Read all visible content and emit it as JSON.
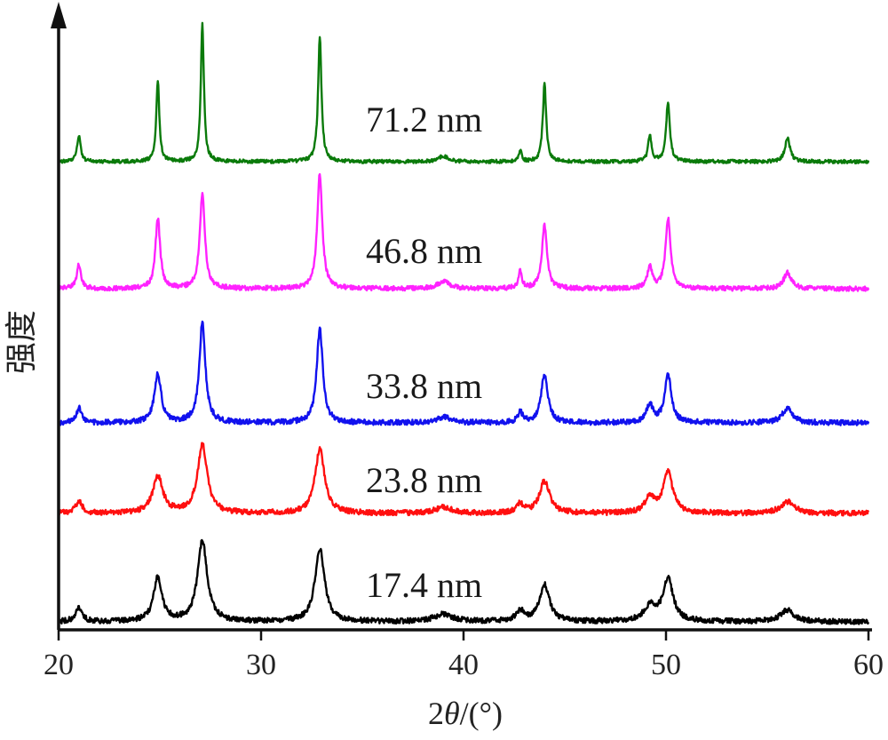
{
  "chart_data": {
    "type": "line",
    "title": "",
    "xlabel": "2θ/(°)",
    "xlabel_parts": {
      "prefix": "2",
      "symbol": "θ",
      "suffix": "/(°)"
    },
    "ylabel": "强度",
    "xlim": [
      20,
      60
    ],
    "x_ticks": [
      "20",
      "30",
      "40",
      "50",
      "60"
    ],
    "grid": false,
    "legend": "none",
    "y_axis_arrow": true,
    "peaks_2theta": [
      21.0,
      24.9,
      27.1,
      32.9,
      39.0,
      42.8,
      44.0,
      49.2,
      50.1,
      56.0
    ],
    "series": [
      {
        "name": "71.2 nm",
        "color": "#0a7a0a",
        "noise": 0.012,
        "peaks": [
          {
            "x": 21.0,
            "h": 0.18,
            "w": 0.1
          },
          {
            "x": 24.9,
            "h": 0.55,
            "w": 0.09
          },
          {
            "x": 27.1,
            "h": 0.95,
            "w": 0.09
          },
          {
            "x": 32.9,
            "h": 0.85,
            "w": 0.1
          },
          {
            "x": 39.0,
            "h": 0.04,
            "w": 0.25
          },
          {
            "x": 42.8,
            "h": 0.08,
            "w": 0.08
          },
          {
            "x": 44.0,
            "h": 0.53,
            "w": 0.1
          },
          {
            "x": 49.2,
            "h": 0.18,
            "w": 0.1
          },
          {
            "x": 50.1,
            "h": 0.41,
            "w": 0.11
          },
          {
            "x": 56.0,
            "h": 0.16,
            "w": 0.15
          }
        ]
      },
      {
        "name": "46.8 nm",
        "color": "#ff22ff",
        "noise": 0.016,
        "peaks": [
          {
            "x": 21.0,
            "h": 0.17,
            "w": 0.12
          },
          {
            "x": 24.9,
            "h": 0.48,
            "w": 0.14
          },
          {
            "x": 27.1,
            "h": 0.65,
            "w": 0.15
          },
          {
            "x": 32.9,
            "h": 0.78,
            "w": 0.15
          },
          {
            "x": 39.0,
            "h": 0.05,
            "w": 0.35
          },
          {
            "x": 42.8,
            "h": 0.12,
            "w": 0.1
          },
          {
            "x": 44.0,
            "h": 0.43,
            "w": 0.15
          },
          {
            "x": 49.2,
            "h": 0.15,
            "w": 0.15
          },
          {
            "x": 50.1,
            "h": 0.48,
            "w": 0.15
          },
          {
            "x": 56.0,
            "h": 0.11,
            "w": 0.22
          }
        ]
      },
      {
        "name": "33.8 nm",
        "color": "#1111ee",
        "noise": 0.018,
        "peaks": [
          {
            "x": 21.0,
            "h": 0.1,
            "w": 0.15
          },
          {
            "x": 24.9,
            "h": 0.33,
            "w": 0.2
          },
          {
            "x": 27.1,
            "h": 0.68,
            "w": 0.18
          },
          {
            "x": 32.9,
            "h": 0.64,
            "w": 0.18
          },
          {
            "x": 39.0,
            "h": 0.04,
            "w": 0.4
          },
          {
            "x": 42.8,
            "h": 0.07,
            "w": 0.15
          },
          {
            "x": 44.0,
            "h": 0.33,
            "w": 0.2
          },
          {
            "x": 49.2,
            "h": 0.12,
            "w": 0.2
          },
          {
            "x": 50.1,
            "h": 0.32,
            "w": 0.2
          },
          {
            "x": 56.0,
            "h": 0.1,
            "w": 0.3
          }
        ]
      },
      {
        "name": "23.8 nm",
        "color": "#ff0f0f",
        "noise": 0.018,
        "peaks": [
          {
            "x": 21.0,
            "h": 0.08,
            "w": 0.2
          },
          {
            "x": 24.9,
            "h": 0.25,
            "w": 0.3
          },
          {
            "x": 27.1,
            "h": 0.47,
            "w": 0.28
          },
          {
            "x": 32.9,
            "h": 0.44,
            "w": 0.28
          },
          {
            "x": 39.0,
            "h": 0.04,
            "w": 0.5
          },
          {
            "x": 42.8,
            "h": 0.06,
            "w": 0.2
          },
          {
            "x": 44.0,
            "h": 0.22,
            "w": 0.3
          },
          {
            "x": 49.2,
            "h": 0.1,
            "w": 0.3
          },
          {
            "x": 50.1,
            "h": 0.28,
            "w": 0.28
          },
          {
            "x": 56.0,
            "h": 0.08,
            "w": 0.4
          }
        ]
      },
      {
        "name": "17.4 nm",
        "color": "#000000",
        "noise": 0.018,
        "peaks": [
          {
            "x": 21.0,
            "h": 0.09,
            "w": 0.2
          },
          {
            "x": 24.9,
            "h": 0.3,
            "w": 0.25
          },
          {
            "x": 27.1,
            "h": 0.55,
            "w": 0.28
          },
          {
            "x": 32.9,
            "h": 0.5,
            "w": 0.28
          },
          {
            "x": 39.0,
            "h": 0.05,
            "w": 0.55
          },
          {
            "x": 42.8,
            "h": 0.07,
            "w": 0.25
          },
          {
            "x": 44.0,
            "h": 0.25,
            "w": 0.3
          },
          {
            "x": 49.2,
            "h": 0.1,
            "w": 0.35
          },
          {
            "x": 50.1,
            "h": 0.29,
            "w": 0.3
          },
          {
            "x": 56.0,
            "h": 0.08,
            "w": 0.4
          }
        ]
      }
    ]
  }
}
